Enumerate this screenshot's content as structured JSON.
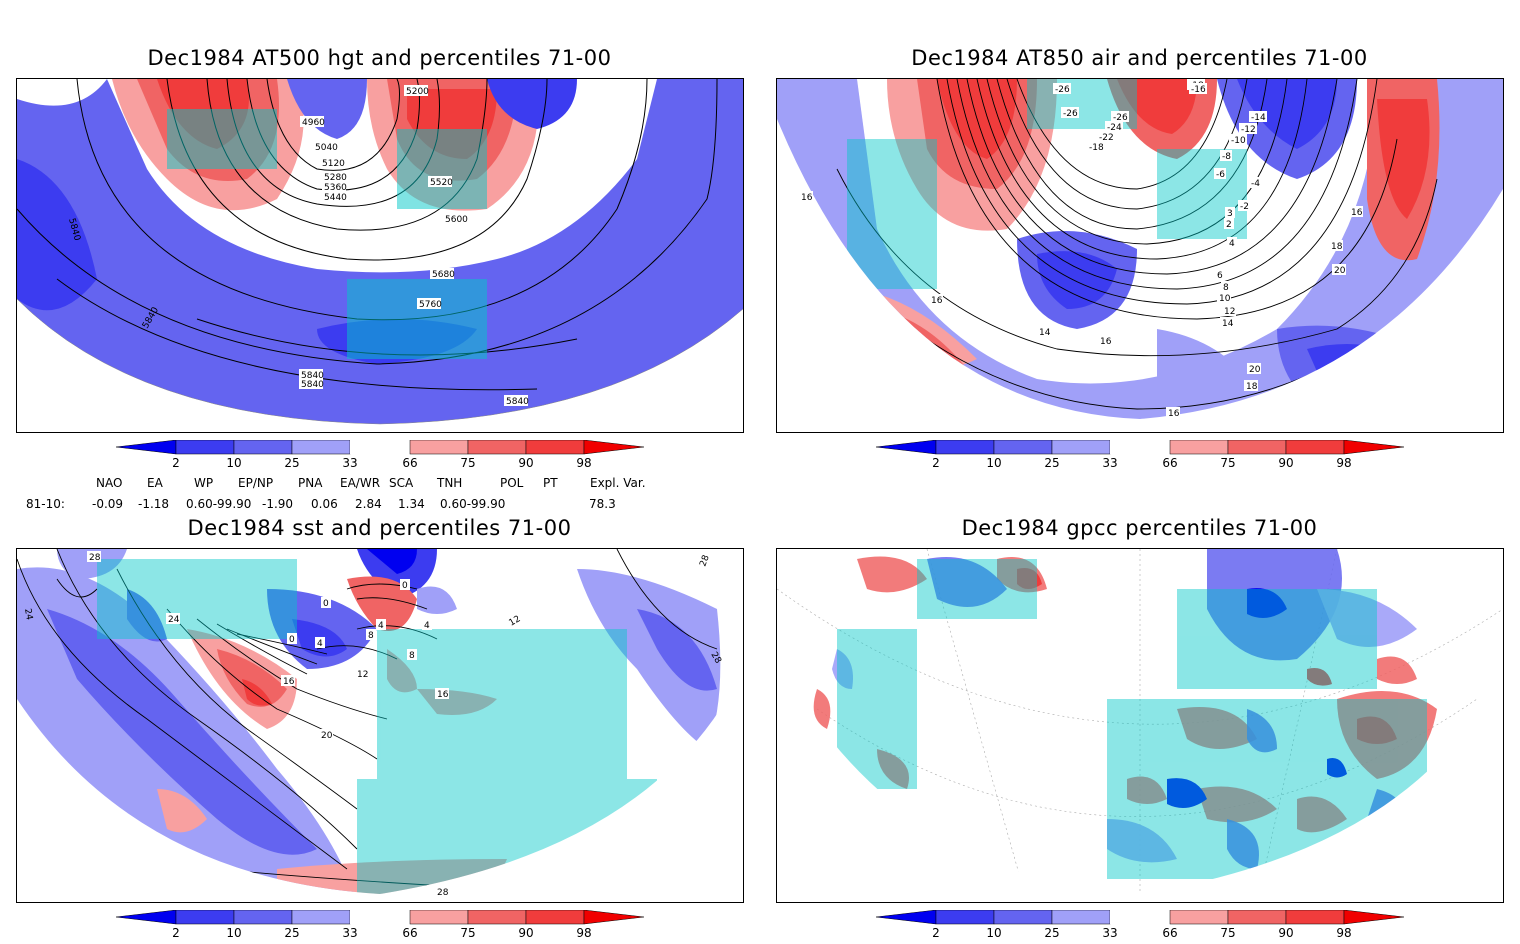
{
  "panels": [
    {
      "title": "Dec1984 AT500 hgt and percentiles 71-00",
      "contour_labels": [
        "4960",
        "5040",
        "5120",
        "5200",
        "5280",
        "5360",
        "5440",
        "5520",
        "5600",
        "5680",
        "5760",
        "5840",
        "5840",
        "5840",
        "5840",
        "5840"
      ]
    },
    {
      "title": "Dec1984 AT850 air and percentiles 71-00",
      "contour_labels": [
        "-26",
        "-26",
        "-26",
        "-24",
        "-22",
        "-18",
        "-18",
        "-16",
        "-14",
        "-12",
        "-10",
        "-8",
        "-6",
        "-4",
        "-2",
        "2",
        "3",
        "4",
        "6",
        "8",
        "10",
        "12",
        "14",
        "14",
        "16",
        "16",
        "16",
        "16",
        "16",
        "18",
        "18",
        "20",
        "20"
      ]
    },
    {
      "title": "Dec1984 sst and percentiles 71-00",
      "contour_labels": [
        "28",
        "24",
        "24",
        "0",
        "0",
        "0",
        "4",
        "4",
        "4",
        "8",
        "8",
        "12",
        "12",
        "16",
        "16",
        "20",
        "28",
        "28",
        "28"
      ]
    },
    {
      "title": "Dec1984 gpcc percentiles 71-00",
      "contour_labels": []
    }
  ],
  "colorbar": {
    "labels": [
      "2",
      "10",
      "25",
      "33",
      "66",
      "75",
      "90",
      "98"
    ],
    "colors": [
      "#0000f0",
      "#3c3cf0",
      "#6464f0",
      "#a0a0f8",
      "#ffffff",
      "#f8a0a0",
      "#f06464",
      "#f03c3c",
      "#f00000"
    ]
  },
  "indices": {
    "headers": [
      "NAO",
      "EA",
      "WP",
      "EP/NP",
      "PNA",
      "EA/WR",
      "SCA",
      "TNH",
      "POL",
      "PT",
      "Expl. Var."
    ],
    "row_label": "81-10:",
    "values": [
      "-0.09",
      "-1.18",
      "0.60-99.90",
      "-1.90",
      "0.06",
      "2.84",
      "1.34",
      "0.60-99.90",
      "78.3"
    ]
  }
}
